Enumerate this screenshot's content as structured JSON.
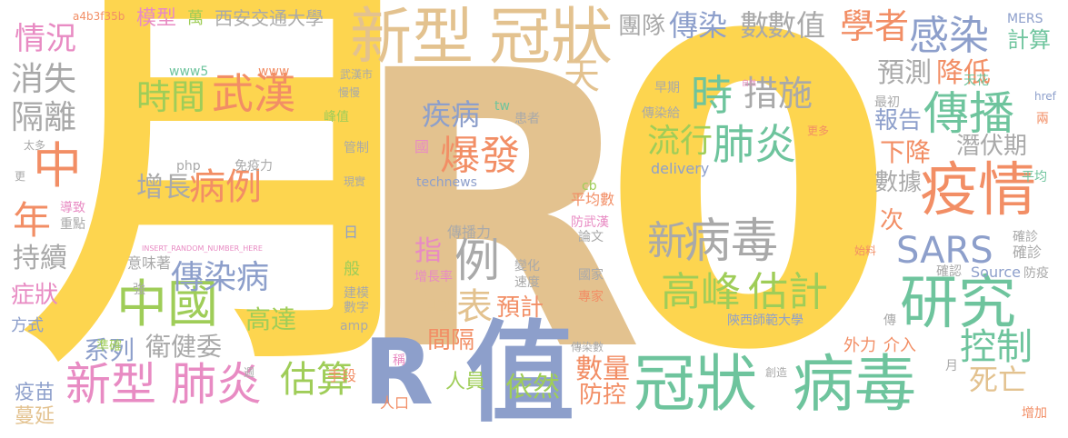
{
  "colors": {
    "yellow": "#fdd54f",
    "tan": "#e3c28f",
    "blue": "#8d9fcb",
    "orange": "#f28e65",
    "green": "#6ec49d",
    "pink": "#e88bc3",
    "lime": "#9fcd58",
    "gray": "#a9a9a9"
  },
  "words": [
    {
      "text": "月",
      "c": "yellow"
    },
    {
      "text": "R",
      "c": "tan"
    },
    {
      "text": "0",
      "c": "yellow"
    },
    {
      "text": "值",
      "c": "blue"
    },
    {
      "text": "R",
      "c": "blue"
    },
    {
      "text": "新型",
      "c": "tan"
    },
    {
      "text": "冠狀",
      "c": "tan"
    },
    {
      "text": "冠狀",
      "c": "green"
    },
    {
      "text": "病毒",
      "c": "green"
    },
    {
      "text": "研究",
      "c": "green"
    },
    {
      "text": "疫情",
      "c": "orange"
    },
    {
      "text": "感染",
      "c": "blue"
    },
    {
      "text": "傳播",
      "c": "green"
    },
    {
      "text": "中國",
      "c": "lime"
    },
    {
      "text": "新型",
      "c": "pink"
    },
    {
      "text": "肺炎",
      "c": "pink"
    },
    {
      "text": "爆發",
      "c": "orange"
    },
    {
      "text": "病毒",
      "c": "gray"
    },
    {
      "text": "新",
      "c": "gray"
    },
    {
      "text": "高峰",
      "c": "lime"
    },
    {
      "text": "估計",
      "c": "lime"
    },
    {
      "text": "傳染病",
      "c": "blue"
    },
    {
      "text": "武漢",
      "c": "orange"
    },
    {
      "text": "時間",
      "c": "lime"
    },
    {
      "text": "病例",
      "c": "orange"
    },
    {
      "text": "增長",
      "c": "gray"
    },
    {
      "text": "SARS",
      "c": "blue"
    },
    {
      "text": "估算",
      "c": "lime"
    },
    {
      "text": "控制",
      "c": "green"
    },
    {
      "text": "數量",
      "c": "orange"
    },
    {
      "text": "防控",
      "c": "orange"
    },
    {
      "text": "依然",
      "c": "lime"
    },
    {
      "text": "發表",
      "c": "tan"
    },
    {
      "text": "例",
      "c": "gray"
    },
    {
      "text": "學者",
      "c": "orange"
    },
    {
      "text": "數值",
      "c": "gray"
    },
    {
      "text": "數",
      "c": "gray"
    },
    {
      "text": "傳染",
      "c": "blue"
    },
    {
      "text": "團隊",
      "c": "gray"
    },
    {
      "text": "預測",
      "c": "gray"
    },
    {
      "text": "降低",
      "c": "orange"
    },
    {
      "text": "措施",
      "c": "gray"
    },
    {
      "text": "時",
      "c": "green"
    },
    {
      "text": "流行",
      "c": "lime"
    },
    {
      "text": "肺炎",
      "c": "green"
    },
    {
      "text": "疾病",
      "c": "blue"
    },
    {
      "text": "天",
      "c": "tan"
    },
    {
      "text": "情況",
      "c": "pink"
    },
    {
      "text": "消失",
      "c": "gray"
    },
    {
      "text": "隔離",
      "c": "gray"
    },
    {
      "text": "中",
      "c": "orange"
    },
    {
      "text": "年",
      "c": "orange"
    },
    {
      "text": "持續",
      "c": "gray"
    },
    {
      "text": "症狀",
      "c": "pink"
    },
    {
      "text": "衛健委",
      "c": "gray"
    },
    {
      "text": "系列",
      "c": "blue"
    },
    {
      "text": "高達",
      "c": "lime"
    },
    {
      "text": "死亡",
      "c": "tan"
    },
    {
      "text": "報告",
      "c": "blue"
    },
    {
      "text": "下降",
      "c": "orange"
    },
    {
      "text": "數據",
      "c": "gray"
    },
    {
      "text": "潛伏期",
      "c": "gray"
    },
    {
      "text": "計算",
      "c": "green"
    },
    {
      "text": "指",
      "c": "pink"
    },
    {
      "text": "預計",
      "c": "orange"
    },
    {
      "text": "間隔",
      "c": "orange"
    },
    {
      "text": "次",
      "c": "orange"
    },
    {
      "text": "模型",
      "c": "pink"
    },
    {
      "text": "西安交通大學",
      "c": "gray"
    },
    {
      "text": "萬",
      "c": "lime"
    },
    {
      "text": "疫苗",
      "c": "blue"
    },
    {
      "text": "蔓延",
      "c": "tan"
    },
    {
      "text": "人員",
      "c": "lime"
    },
    {
      "text": "手段",
      "c": "orange"
    },
    {
      "text": "人口",
      "c": "orange"
    },
    {
      "text": "確診",
      "c": "gray"
    },
    {
      "text": "外力",
      "c": "orange"
    },
    {
      "text": "介入",
      "c": "orange"
    },
    {
      "text": "陝西師範大學",
      "c": "blue"
    },
    {
      "text": "MERS",
      "c": "blue"
    },
    {
      "text": "Source",
      "c": "blue"
    },
    {
      "text": "delivery",
      "c": "blue"
    },
    {
      "text": "technews",
      "c": "blue"
    },
    {
      "text": "www5",
      "c": "green"
    },
    {
      "text": "www",
      "c": "orange"
    },
    {
      "text": "php",
      "c": "gray"
    },
    {
      "text": "amp",
      "c": "gray"
    },
    {
      "text": "cb",
      "c": "lime"
    },
    {
      "text": "tw",
      "c": "green"
    },
    {
      "text": "方式",
      "c": "blue"
    },
    {
      "text": "免疫力",
      "c": "gray"
    },
    {
      "text": "導致",
      "c": "pink"
    },
    {
      "text": "重點",
      "c": "gray"
    },
    {
      "text": "平均數",
      "c": "orange"
    },
    {
      "text": "傳播力",
      "c": "gray"
    },
    {
      "text": "防武漢",
      "c": "pink"
    },
    {
      "text": "增長率",
      "c": "pink"
    },
    {
      "text": "數字",
      "c": "gray"
    },
    {
      "text": "建模",
      "c": "gray"
    },
    {
      "text": "速度",
      "c": "gray"
    },
    {
      "text": "變化",
      "c": "gray"
    },
    {
      "text": "國家",
      "c": "gray"
    },
    {
      "text": "專家",
      "c": "orange"
    },
    {
      "text": "意味著",
      "c": "gray"
    },
    {
      "text": "準確",
      "c": "lime"
    },
    {
      "text": "患者",
      "c": "gray"
    },
    {
      "text": "早期",
      "c": "gray"
    },
    {
      "text": "傳染給",
      "c": "gray"
    },
    {
      "text": "最初",
      "c": "gray"
    },
    {
      "text": "天花",
      "c": "green"
    },
    {
      "text": "平均",
      "c": "green"
    },
    {
      "text": "月",
      "c": "gray"
    },
    {
      "text": "防疫",
      "c": "gray"
    },
    {
      "text": "確認",
      "c": "gray"
    },
    {
      "text": "確診",
      "c": "gray"
    },
    {
      "text": "傳染數",
      "c": "gray"
    },
    {
      "text": "峰值",
      "c": "lime"
    },
    {
      "text": "慢慢",
      "c": "gray"
    },
    {
      "text": "武漢市",
      "c": "gray"
    },
    {
      "text": "管制",
      "c": "gray"
    },
    {
      "text": "現實",
      "c": "gray"
    },
    {
      "text": "國",
      "c": "pink"
    },
    {
      "text": "般",
      "c": "lime"
    },
    {
      "text": "日",
      "c": "blue"
    },
    {
      "text": "更多",
      "c": "orange"
    },
    {
      "text": "太多",
      "c": "gray"
    },
    {
      "text": "a4b3f35b",
      "c": "orange"
    },
    {
      "text": "href",
      "c": "blue"
    },
    {
      "text": "兩",
      "c": "orange"
    },
    {
      "text": "更",
      "c": "gray"
    },
    {
      "text": "強",
      "c": "gray"
    },
    {
      "text": "週",
      "c": "gray"
    },
    {
      "text": "傳",
      "c": "gray"
    },
    {
      "text": "創造",
      "c": "gray"
    },
    {
      "text": "增加",
      "c": "orange"
    },
    {
      "text": "稱",
      "c": "pink"
    },
    {
      "text": "論文",
      "c": "gray"
    },
    {
      "text": "INSERT_RANDOM_NUMBER_HERE",
      "c": "pink"
    },
    {
      "text": "始料",
      "c": "orange"
    },
    {
      "text": "自然",
      "c": "pink"
    }
  ]
}
